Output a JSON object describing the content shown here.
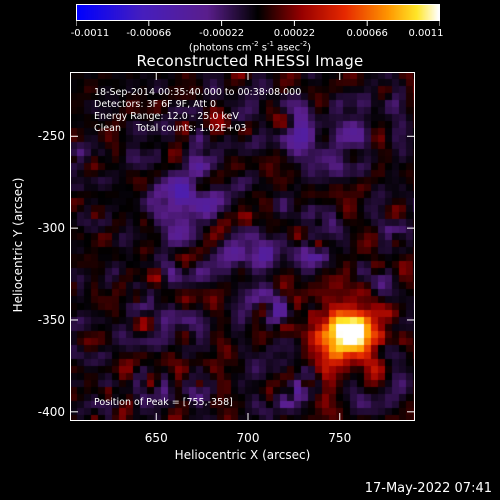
{
  "colorbar": {
    "tick_labels": [
      "-0.0011",
      "-0.00066",
      "-0.00022",
      "0.00022",
      "0.00066",
      "0.0011"
    ],
    "units_prefix": "(photons cm",
    "units_exp1": "-2",
    "units_mid1": " s",
    "units_exp2": "-1",
    "units_mid2": " asec",
    "units_exp3": "-2",
    "units_suffix": ")"
  },
  "title": "Reconstructed RHESSI Image",
  "info": {
    "time_range": "18-Sep-2014 00:35:40.000 to 00:38:08.000",
    "detectors": "Detectors: 3F 6F 9F, Att 0",
    "energy_range": "Energy Range: 12.0 - 25.0 keV",
    "clean_counts": "Clean     Total counts: 1.02E+03"
  },
  "peak_label": "Position of Peak = [755,-358]",
  "axes": {
    "xlabel": "Heliocentric X (arcsec)",
    "ylabel": "Heliocentric Y (arcsec)",
    "x_ticks": [
      "650",
      "700",
      "750"
    ],
    "y_ticks": [
      "-250",
      "-300",
      "-350",
      "-400"
    ],
    "x_range": [
      603,
      791
    ],
    "y_range": [
      -405,
      -215
    ]
  },
  "timestamp": "17-May-2022 07:41",
  "image": {
    "peak_x": 755,
    "peak_y": -358,
    "colormap": "blue-purple-black-red-orange-yellow-white"
  }
}
